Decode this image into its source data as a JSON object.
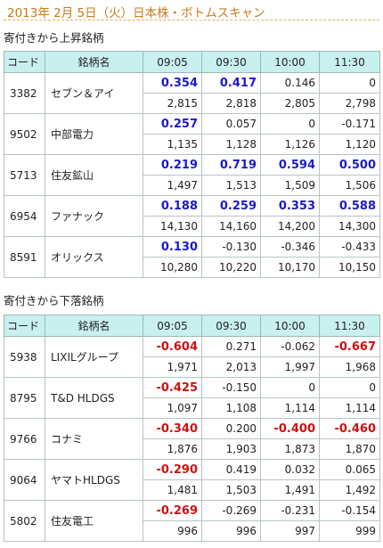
{
  "title": "2013年 2月 5日（火）日本株・ボトムスキャン",
  "headers": [
    "コード",
    "銘柄名",
    "09:05",
    "09:30",
    "10:00",
    "11:30"
  ],
  "sections": [
    {
      "label": "寄付きから上昇銘柄",
      "stocks": [
        {
          "code": "3382",
          "name": "セブン＆アイ",
          "changes": [
            "0.354",
            "0.417",
            "0.146",
            "0"
          ],
          "change_style": [
            "pos",
            "pos",
            "norm",
            "norm"
          ],
          "prices": [
            "2,815",
            "2,818",
            "2,805",
            "2,798"
          ]
        },
        {
          "code": "9502",
          "name": "中部電力",
          "changes": [
            "0.257",
            "0.057",
            "0",
            "-0.171"
          ],
          "change_style": [
            "pos",
            "norm",
            "norm",
            "norm"
          ],
          "prices": [
            "1,135",
            "1,128",
            "1,126",
            "1,120"
          ]
        },
        {
          "code": "5713",
          "name": "住友鉱山",
          "changes": [
            "0.219",
            "0.719",
            "0.594",
            "0.500"
          ],
          "change_style": [
            "pos",
            "pos",
            "pos",
            "pos"
          ],
          "prices": [
            "1,497",
            "1,513",
            "1,509",
            "1,506"
          ]
        },
        {
          "code": "6954",
          "name": "ファナック",
          "changes": [
            "0.188",
            "0.259",
            "0.353",
            "0.588"
          ],
          "change_style": [
            "pos",
            "pos",
            "pos",
            "pos"
          ],
          "prices": [
            "14,130",
            "14,160",
            "14,200",
            "14,300"
          ]
        },
        {
          "code": "8591",
          "name": "オリックス",
          "changes": [
            "0.130",
            "-0.130",
            "-0.346",
            "-0.433"
          ],
          "change_style": [
            "pos",
            "norm",
            "norm",
            "norm"
          ],
          "prices": [
            "10,280",
            "10,220",
            "10,170",
            "10,150"
          ]
        }
      ]
    },
    {
      "label": "寄付きから下落銘柄",
      "stocks": [
        {
          "code": "5938",
          "name": "LIXILグループ",
          "changes": [
            "-0.604",
            "0.271",
            "-0.062",
            "-0.667"
          ],
          "change_style": [
            "neg",
            "norm",
            "norm",
            "neg"
          ],
          "prices": [
            "1,971",
            "2,013",
            "1,997",
            "1,968"
          ]
        },
        {
          "code": "8795",
          "name": "T&D HLDGS",
          "changes": [
            "-0.425",
            "-0.150",
            "0",
            "0"
          ],
          "change_style": [
            "neg",
            "norm",
            "norm",
            "norm"
          ],
          "prices": [
            "1,097",
            "1,108",
            "1,114",
            "1,114"
          ]
        },
        {
          "code": "9766",
          "name": "コナミ",
          "changes": [
            "-0.340",
            "0.200",
            "-0.400",
            "-0.460"
          ],
          "change_style": [
            "neg",
            "norm",
            "neg",
            "neg"
          ],
          "prices": [
            "1,876",
            "1,903",
            "1,873",
            "1,870"
          ]
        },
        {
          "code": "9064",
          "name": "ヤマトHLDGS",
          "changes": [
            "-0.290",
            "0.419",
            "0.032",
            "0.065"
          ],
          "change_style": [
            "neg",
            "norm",
            "norm",
            "norm"
          ],
          "prices": [
            "1,481",
            "1,503",
            "1,491",
            "1,492"
          ]
        },
        {
          "code": "5802",
          "name": "住友電工",
          "changes": [
            "-0.269",
            "-0.269",
            "-0.231",
            "-0.154"
          ],
          "change_style": [
            "neg",
            "norm",
            "norm",
            "norm"
          ],
          "prices": [
            "996",
            "996",
            "997",
            "999"
          ]
        }
      ]
    }
  ]
}
